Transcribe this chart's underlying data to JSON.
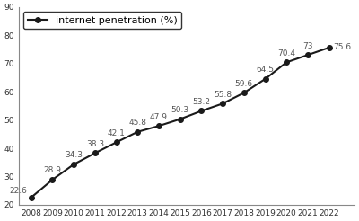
{
  "years": [
    2008,
    2009,
    2010,
    2011,
    2012,
    2013,
    2014,
    2015,
    2016,
    2017,
    2018,
    2019,
    2020,
    2021,
    2022
  ],
  "values": [
    22.6,
    28.9,
    34.3,
    38.3,
    42.1,
    45.8,
    47.9,
    50.3,
    53.2,
    55.8,
    59.6,
    64.5,
    70.4,
    73,
    75.6
  ],
  "legend_label": "internet penetration (%)",
  "ylim": [
    20,
    90
  ],
  "yticks": [
    20,
    30,
    40,
    50,
    60,
    70,
    80,
    90
  ],
  "line_color": "#1a1a1a",
  "marker": "o",
  "marker_size": 4,
  "label_fontsize": 6.5,
  "tick_fontsize": 6.5,
  "legend_fontsize": 8,
  "background_color": "#ffffff",
  "annotation_color": "#555555",
  "spine_color": "#888888"
}
